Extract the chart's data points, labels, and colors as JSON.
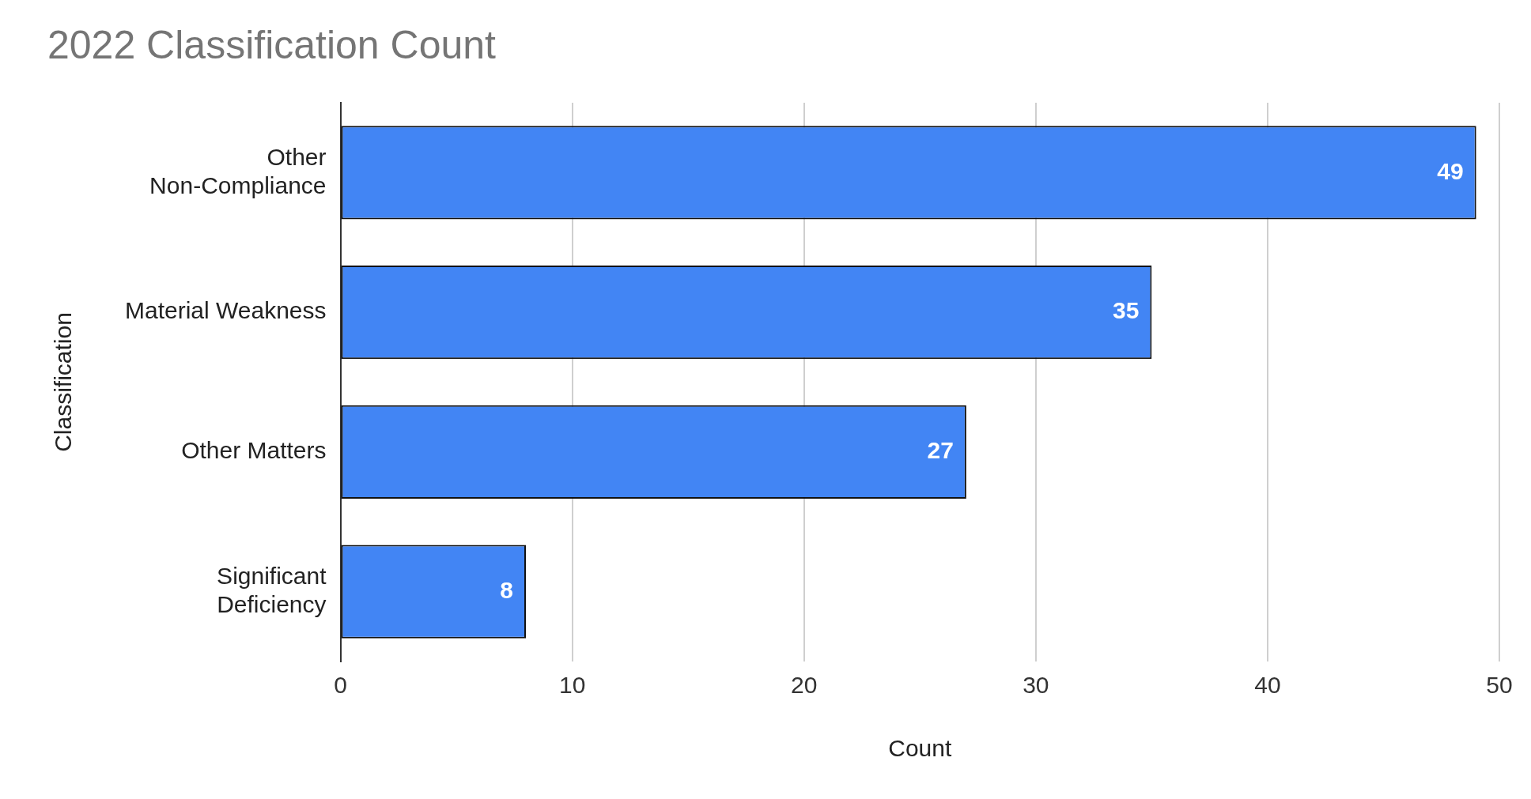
{
  "chart_data": {
    "type": "bar",
    "title": "2022 Classification Count",
    "xlabel": "Count",
    "ylabel": "Classification",
    "orientation": "horizontal",
    "categories": [
      "Other Non-Compliance",
      "Material Weakness",
      "Other Matters",
      "Significant Deficiency"
    ],
    "values": [
      49,
      35,
      27,
      8
    ],
    "color": "#4285f4",
    "xlim": [
      0,
      50
    ],
    "xticks": [
      0,
      10,
      20,
      30,
      40,
      50
    ],
    "grid": "x",
    "data_labels": true,
    "legend": false
  }
}
